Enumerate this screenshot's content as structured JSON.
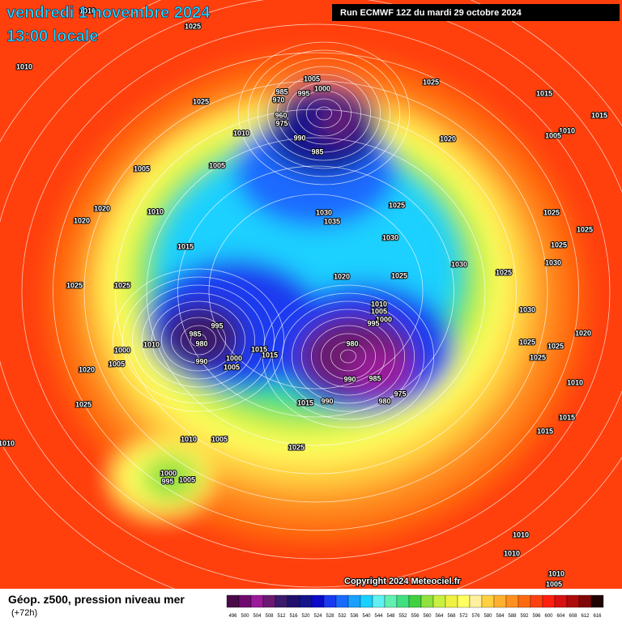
{
  "header": {
    "title": "vendredi 1 novembre 2024",
    "subtitle": "13:00 locale",
    "run": "Run ECMWF 12Z du mardi 29 octobre 2024"
  },
  "map": {
    "copyright": "Copyright 2024 Meteociel.fr",
    "isobar_labels": [
      1010,
      1025,
      1010,
      1025,
      985,
      1005,
      1000,
      995,
      970,
      960,
      975,
      1010,
      990,
      985,
      1025,
      1015,
      1015,
      1010,
      1005,
      1020,
      1005,
      1005,
      1020,
      1010,
      1020,
      1030,
      1035,
      1025,
      1025,
      1025,
      1030,
      1025,
      1015,
      1030,
      1030,
      1025,
      1020,
      1025,
      1025,
      1025,
      1010,
      1005,
      1000,
      995,
      1030,
      1020,
      995,
      985,
      980,
      1010,
      1025,
      1025,
      980,
      1015,
      1015,
      1000,
      1000,
      990,
      1025,
      1005,
      1005,
      1020,
      990,
      985,
      975,
      1010,
      980,
      990,
      1015,
      1025,
      1015,
      1015,
      1010,
      1010,
      1005,
      1025,
      1000,
      995,
      1005,
      1010,
      1010,
      1010,
      1005
    ]
  },
  "footer": {
    "field": "Géop. z500, pression niveau mer",
    "lead": "(+72h)",
    "scale": {
      "values": [
        496,
        500,
        504,
        508,
        512,
        516,
        520,
        524,
        528,
        532,
        536,
        540,
        544,
        548,
        552,
        556,
        560,
        564,
        568,
        572,
        576,
        580,
        584,
        588,
        592,
        596,
        600,
        604,
        608,
        612,
        616
      ],
      "colors": [
        "#4a0a4a",
        "#6e0a6e",
        "#9a1a9a",
        "#6a1a70",
        "#3a1a6a",
        "#20106a",
        "#14148a",
        "#0a0ac8",
        "#1a3af0",
        "#1a6aff",
        "#1aa0ff",
        "#1ad0ff",
        "#60f0f0",
        "#60f0b0",
        "#40e080",
        "#40d040",
        "#90e040",
        "#c8f040",
        "#f0f040",
        "#ffff60",
        "#fff0a0",
        "#ffd040",
        "#ffb030",
        "#ff9020",
        "#ff6a10",
        "#ff4010",
        "#ff2010",
        "#d81010",
        "#b00a0a",
        "#800808",
        "#200404"
      ]
    }
  }
}
